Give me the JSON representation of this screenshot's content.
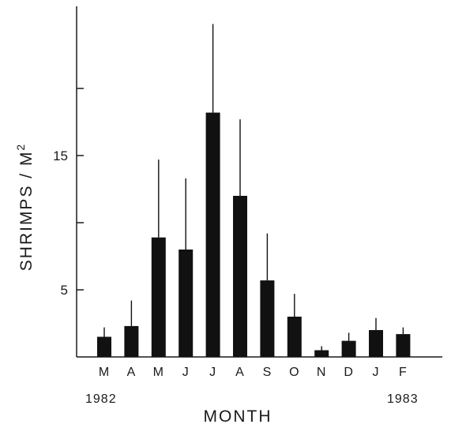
{
  "chart_data": {
    "type": "bar",
    "categories": [
      "M",
      "A",
      "M",
      "J",
      "J",
      "A",
      "S",
      "O",
      "N",
      "D",
      "J",
      "F"
    ],
    "values": [
      1.5,
      2.3,
      8.9,
      8.0,
      18.2,
      12.0,
      5.7,
      3.0,
      0.5,
      1.2,
      2.0,
      1.7
    ],
    "error_upper": [
      2.2,
      4.2,
      14.7,
      13.3,
      24.8,
      17.7,
      9.2,
      4.7,
      0.8,
      1.8,
      2.9,
      2.2
    ],
    "title": "",
    "xlabel": "MONTH",
    "ylabel_main": "SHRIMPS / M",
    "ylabel_sup": "2",
    "year_labels": {
      "start": "1982",
      "end": "1983"
    },
    "y_ticks": [
      {
        "value": 5,
        "label": "5"
      },
      {
        "value": 10,
        "label": ""
      },
      {
        "value": 15,
        "label": "15"
      },
      {
        "value": 20,
        "label": ""
      }
    ],
    "ylim": [
      0,
      26
    ],
    "grid": false,
    "bar_color": "#111111",
    "axis_color": "#1a1a1a"
  }
}
